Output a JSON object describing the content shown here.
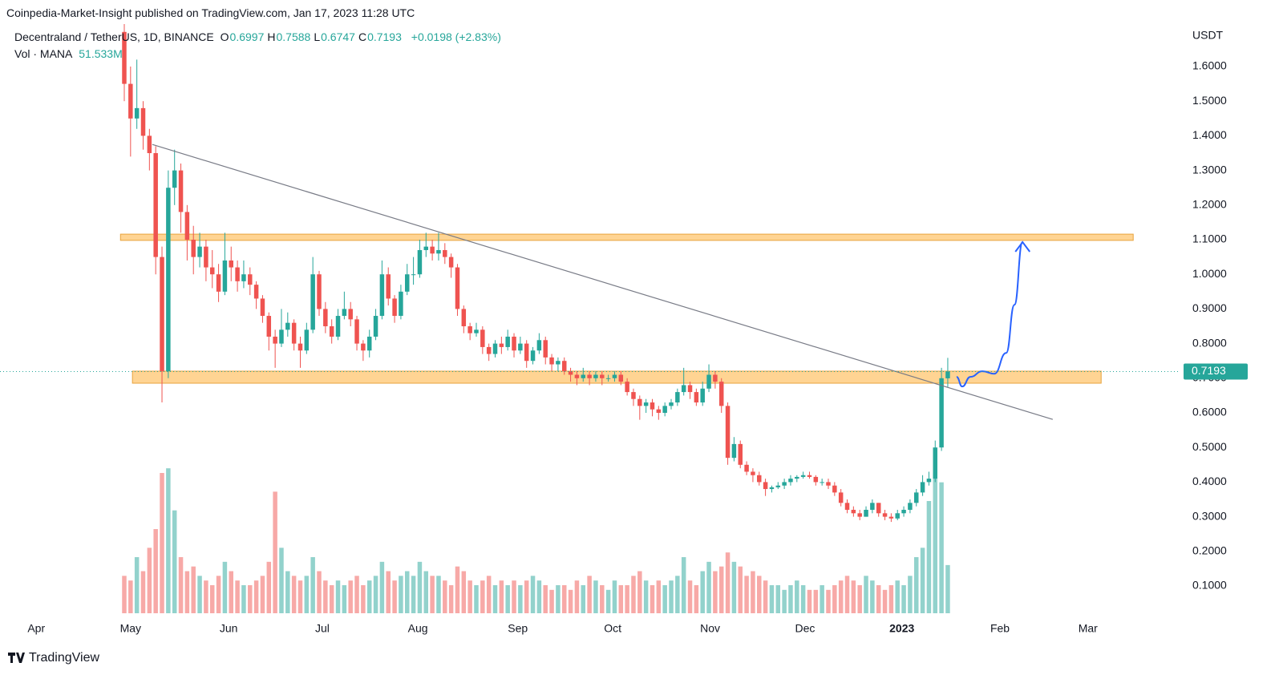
{
  "chart_data": {
    "type": "candlestick",
    "subtitle": "Coinpedia-Market-Insight published on TradingView.com, Jan 17, 2023 11:28 UTC",
    "title": "Decentraland / TetherUS, 1D, BINANCE",
    "ohlc_names": [
      "O",
      "H",
      "L",
      "C"
    ],
    "change_label": "+0.0198 (+2.83%)",
    "volume_title": "Vol · MANA",
    "last_volume_label": "51.533M",
    "y_unit": "USDT",
    "brand": "TradingView",
    "colors": {
      "up": "#26a69a",
      "down": "#ef5350",
      "zone": "#ffcc80",
      "zone_border": "#e8a33d",
      "trend": "#787b86",
      "projection": "#2962ff"
    },
    "open": [
      1.7,
      1.55,
      1.45,
      1.48,
      1.4,
      1.35,
      1.05,
      0.72,
      1.25,
      1.3,
      1.18,
      1.1,
      1.05,
      1.08,
      1.02,
      1.0,
      0.95,
      1.04,
      1.02,
      0.98,
      1.0,
      0.97,
      0.93,
      0.88,
      0.82,
      0.8,
      0.84,
      0.86,
      0.8,
      0.78,
      0.84,
      1.0,
      0.9,
      0.85,
      0.82,
      0.88,
      0.9,
      0.87,
      0.8,
      0.78,
      0.82,
      0.88,
      1.0,
      0.93,
      0.88,
      0.95,
      1.0,
      1.0,
      1.07,
      1.08,
      1.06,
      1.07,
      1.05,
      1.02,
      0.9,
      0.85,
      0.83,
      0.84,
      0.79,
      0.77,
      0.8,
      0.79,
      0.82,
      0.78,
      0.8,
      0.75,
      0.78,
      0.81,
      0.76,
      0.74,
      0.75,
      0.72,
      0.71,
      0.7,
      0.71,
      0.7,
      0.71,
      0.7,
      0.7,
      0.71,
      0.69,
      0.66,
      0.64,
      0.62,
      0.63,
      0.61,
      0.6,
      0.62,
      0.63,
      0.66,
      0.68,
      0.66,
      0.63,
      0.67,
      0.71,
      0.69,
      0.62,
      0.47,
      0.51,
      0.45,
      0.43,
      0.42,
      0.4,
      0.38,
      0.385,
      0.39,
      0.4,
      0.41,
      0.415,
      0.42,
      0.415,
      0.4,
      0.4,
      0.39,
      0.37,
      0.34,
      0.32,
      0.31,
      0.3,
      0.32,
      0.34,
      0.31,
      0.3,
      0.295,
      0.31,
      0.32,
      0.34,
      0.37,
      0.4,
      0.41,
      0.5,
      0.6997
    ],
    "high": [
      1.79,
      1.6,
      1.62,
      1.5,
      1.42,
      1.37,
      1.08,
      1.3,
      1.36,
      1.32,
      1.2,
      1.14,
      1.12,
      1.1,
      1.07,
      1.03,
      1.12,
      1.08,
      1.04,
      1.04,
      1.02,
      0.98,
      0.94,
      0.89,
      0.84,
      0.9,
      0.89,
      0.87,
      0.82,
      0.86,
      1.05,
      1.01,
      0.92,
      0.87,
      0.9,
      0.95,
      0.92,
      0.88,
      0.81,
      0.84,
      0.9,
      1.04,
      1.02,
      0.94,
      0.97,
      1.03,
      1.05,
      1.1,
      1.12,
      1.1,
      1.12,
      1.09,
      1.06,
      1.03,
      0.91,
      0.86,
      0.86,
      0.85,
      0.8,
      0.81,
      0.82,
      0.84,
      0.83,
      0.82,
      0.81,
      0.79,
      0.83,
      0.82,
      0.77,
      0.76,
      0.76,
      0.73,
      0.72,
      0.73,
      0.72,
      0.72,
      0.72,
      0.71,
      0.72,
      0.72,
      0.7,
      0.67,
      0.65,
      0.64,
      0.64,
      0.62,
      0.63,
      0.64,
      0.67,
      0.73,
      0.69,
      0.67,
      0.69,
      0.74,
      0.72,
      0.7,
      0.63,
      0.53,
      0.52,
      0.46,
      0.44,
      0.43,
      0.41,
      0.39,
      0.4,
      0.41,
      0.42,
      0.42,
      0.43,
      0.43,
      0.42,
      0.41,
      0.41,
      0.4,
      0.38,
      0.35,
      0.33,
      0.32,
      0.33,
      0.35,
      0.34,
      0.32,
      0.31,
      0.32,
      0.33,
      0.35,
      0.38,
      0.42,
      0.43,
      0.52,
      0.73,
      0.7588
    ],
    "low": [
      1.5,
      1.34,
      1.42,
      1.36,
      1.3,
      1.0,
      0.63,
      0.7,
      1.2,
      1.12,
      1.04,
      1.0,
      1.02,
      0.98,
      0.96,
      0.92,
      0.94,
      0.98,
      0.95,
      0.96,
      0.94,
      0.9,
      0.86,
      0.78,
      0.73,
      0.79,
      0.82,
      0.78,
      0.73,
      0.77,
      0.83,
      0.88,
      0.83,
      0.8,
      0.81,
      0.87,
      0.85,
      0.78,
      0.75,
      0.76,
      0.81,
      0.87,
      0.91,
      0.86,
      0.87,
      0.94,
      0.97,
      0.99,
      1.05,
      1.04,
      1.04,
      1.03,
      0.99,
      0.88,
      0.83,
      0.81,
      0.82,
      0.77,
      0.75,
      0.76,
      0.77,
      0.78,
      0.76,
      0.77,
      0.73,
      0.74,
      0.77,
      0.74,
      0.72,
      0.72,
      0.71,
      0.69,
      0.68,
      0.69,
      0.68,
      0.69,
      0.68,
      0.69,
      0.69,
      0.68,
      0.65,
      0.62,
      0.58,
      0.6,
      0.59,
      0.58,
      0.59,
      0.61,
      0.62,
      0.65,
      0.64,
      0.62,
      0.62,
      0.66,
      0.67,
      0.6,
      0.45,
      0.46,
      0.44,
      0.42,
      0.4,
      0.39,
      0.36,
      0.37,
      0.38,
      0.38,
      0.39,
      0.4,
      0.41,
      0.41,
      0.39,
      0.39,
      0.38,
      0.36,
      0.33,
      0.31,
      0.3,
      0.29,
      0.3,
      0.31,
      0.3,
      0.29,
      0.285,
      0.29,
      0.3,
      0.31,
      0.33,
      0.36,
      0.39,
      0.4,
      0.49,
      0.6747
    ],
    "close": [
      1.55,
      1.45,
      1.48,
      1.4,
      1.35,
      1.05,
      0.72,
      1.25,
      1.3,
      1.18,
      1.1,
      1.05,
      1.08,
      1.02,
      1.0,
      0.95,
      1.04,
      1.02,
      0.98,
      1.0,
      0.97,
      0.93,
      0.88,
      0.82,
      0.8,
      0.84,
      0.86,
      0.8,
      0.78,
      0.84,
      1.0,
      0.9,
      0.85,
      0.82,
      0.88,
      0.9,
      0.87,
      0.8,
      0.78,
      0.82,
      0.88,
      1.0,
      0.93,
      0.88,
      0.95,
      1.0,
      1.0,
      1.07,
      1.08,
      1.06,
      1.07,
      1.05,
      1.02,
      0.9,
      0.85,
      0.83,
      0.84,
      0.79,
      0.77,
      0.8,
      0.79,
      0.82,
      0.78,
      0.8,
      0.75,
      0.78,
      0.81,
      0.76,
      0.74,
      0.75,
      0.72,
      0.71,
      0.7,
      0.71,
      0.7,
      0.71,
      0.7,
      0.7,
      0.71,
      0.69,
      0.66,
      0.64,
      0.62,
      0.63,
      0.61,
      0.6,
      0.62,
      0.63,
      0.66,
      0.68,
      0.66,
      0.63,
      0.67,
      0.71,
      0.69,
      0.62,
      0.47,
      0.51,
      0.45,
      0.43,
      0.42,
      0.4,
      0.38,
      0.385,
      0.39,
      0.4,
      0.41,
      0.415,
      0.42,
      0.415,
      0.4,
      0.4,
      0.39,
      0.37,
      0.34,
      0.32,
      0.31,
      0.3,
      0.32,
      0.34,
      0.31,
      0.3,
      0.295,
      0.31,
      0.32,
      0.34,
      0.37,
      0.4,
      0.41,
      0.5,
      0.7,
      0.7193
    ],
    "volume": [
      40,
      35,
      60,
      45,
      70,
      90,
      150,
      155,
      110,
      60,
      45,
      50,
      40,
      35,
      30,
      40,
      55,
      45,
      35,
      30,
      30,
      35,
      40,
      55,
      130,
      70,
      45,
      40,
      35,
      40,
      60,
      45,
      35,
      30,
      35,
      30,
      35,
      40,
      30,
      35,
      40,
      55,
      45,
      35,
      40,
      45,
      40,
      55,
      45,
      40,
      40,
      35,
      30,
      50,
      45,
      35,
      30,
      35,
      40,
      30,
      35,
      30,
      35,
      30,
      35,
      40,
      35,
      30,
      25,
      30,
      30,
      25,
      35,
      30,
      40,
      35,
      30,
      25,
      35,
      30,
      30,
      40,
      45,
      35,
      30,
      35,
      30,
      35,
      40,
      60,
      35,
      30,
      45,
      55,
      45,
      50,
      65,
      55,
      50,
      40,
      45,
      40,
      35,
      30,
      30,
      25,
      30,
      35,
      30,
      25,
      25,
      30,
      25,
      30,
      35,
      40,
      35,
      30,
      40,
      35,
      30,
      25,
      30,
      35,
      30,
      40,
      60,
      70,
      120,
      150,
      140,
      51.533
    ],
    "volume_lim": [
      0,
      630
    ],
    "xlim": [
      -19.77,
      168.0
    ],
    "xticks": [
      {
        "value": -14.0,
        "label": "Apr"
      },
      {
        "value": 1.0,
        "label": "May"
      },
      {
        "value": 16.6,
        "label": "Jun"
      },
      {
        "value": 31.5,
        "label": "Jul"
      },
      {
        "value": 46.7,
        "label": "Aug"
      },
      {
        "value": 62.6,
        "label": "Sep"
      },
      {
        "value": 77.7,
        "label": "Oct"
      },
      {
        "value": 93.2,
        "label": "Nov"
      },
      {
        "value": 108.3,
        "label": "Dec"
      },
      {
        "value": 123.7,
        "label": "2023"
      },
      {
        "value": 139.3,
        "label": "Feb"
      },
      {
        "value": 153.3,
        "label": "Mar"
      }
    ],
    "ylim": [
      0.0213,
      1.7227
    ],
    "yticks": [
      {
        "value": 0.1,
        "label": "0.1000"
      },
      {
        "value": 0.2,
        "label": "0.2000"
      },
      {
        "value": 0.3,
        "label": "0.3000"
      },
      {
        "value": 0.4,
        "label": "0.4000"
      },
      {
        "value": 0.5,
        "label": "0.5000"
      },
      {
        "value": 0.6,
        "label": "0.6000"
      },
      {
        "value": 0.7,
        "label": "0.7000"
      },
      {
        "value": 0.8,
        "label": "0.8000"
      },
      {
        "value": 0.9,
        "label": "0.9000"
      },
      {
        "value": 1.0,
        "label": "1.0000"
      },
      {
        "value": 1.1,
        "label": "1.1000"
      },
      {
        "value": 1.2,
        "label": "1.2000"
      },
      {
        "value": 1.3,
        "label": "1.3000"
      },
      {
        "value": 1.4,
        "label": "1.4000"
      },
      {
        "value": 1.5,
        "label": "1.5000"
      },
      {
        "value": 1.6,
        "label": "1.6000"
      }
    ],
    "zones": [
      {
        "from": 1.098,
        "to": 1.116,
        "start": -0.6,
        "end": 160.5
      },
      {
        "from": 0.6856,
        "to": 0.7204,
        "start": 1.3,
        "end": 155.4
      }
    ],
    "trendline": {
      "x": [
        4.46,
        147.7
      ],
      "y": [
        1.375,
        0.581
      ]
    },
    "projection": {
      "x": [
        132.4,
        133.3,
        134.6,
        136.5,
        138.4,
        140.3,
        141.6,
        142.9
      ],
      "y": [
        0.704,
        0.676,
        0.704,
        0.72,
        0.713,
        0.773,
        0.912,
        1.093
      ]
    }
  }
}
